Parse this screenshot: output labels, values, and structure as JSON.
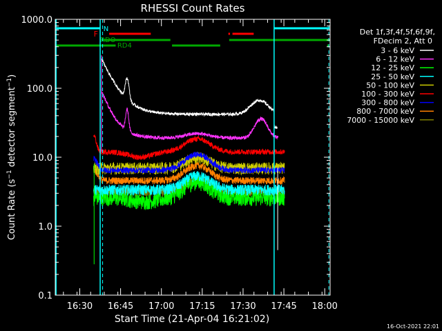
{
  "chart_data": {
    "type": "line",
    "title": "RHESSI Count Rates",
    "xlabel": "Start Time (21-Apr-04 16:21:02)",
    "ylabel_main": "Count Rate (s",
    "ylabel_sup": "−1",
    "ylabel_tail": " detector segment",
    "ylabel_sup2": "−1",
    "ylabel_close": ")",
    "y_scale": "log",
    "ylim": [
      0.1,
      1000
    ],
    "y_ticks": [
      {
        "value": 0.1,
        "label": "0.1"
      },
      {
        "value": 1,
        "label": "1.0"
      },
      {
        "value": 10,
        "label": "10.0"
      },
      {
        "value": 100,
        "label": "100.0"
      },
      {
        "value": 1000,
        "label": "1000.0"
      }
    ],
    "x_range_min": [
      16.35,
      18.033
    ],
    "x_ticks": [
      {
        "value": 16.5,
        "label": "16:30"
      },
      {
        "value": 16.75,
        "label": "16:45"
      },
      {
        "value": 17.0,
        "label": "17:00"
      },
      {
        "value": 17.25,
        "label": "17:15"
      },
      {
        "value": 17.5,
        "label": "17:30"
      },
      {
        "value": 17.75,
        "label": "17:45"
      },
      {
        "value": 18.0,
        "label": "18:00"
      }
    ],
    "legend_header": [
      "Det 1f,3f,4f,5f,6f,9f,",
      "FDecim 2, Att 0"
    ],
    "series": [
      {
        "name": "3 - 6 keV",
        "color": "#ffffff"
      },
      {
        "name": "6 - 12 keV",
        "color": "#ff33ff"
      },
      {
        "name": "12 - 25 keV",
        "color": "#00ff00"
      },
      {
        "name": "25 - 50 keV",
        "color": "#00ffff"
      },
      {
        "name": "50 - 100 keV",
        "color": "#cccc00"
      },
      {
        "name": "100 - 300 keV",
        "color": "#ff0000"
      },
      {
        "name": "300 - 800 keV",
        "color": "#0000ff"
      },
      {
        "name": "800 - 7000 keV",
        "color": "#ff8000"
      },
      {
        "name": "7000 - 15000 keV",
        "color": "#808000"
      }
    ],
    "flags": {
      "N": {
        "label": "N",
        "color": "#00ffff"
      },
      "F": {
        "label": "F",
        "color": "#ff0000"
      },
      "RDO": {
        "label": "RDO",
        "color": "#00aa00"
      },
      "RD4": {
        "label": "RD4",
        "color": "#00aa00"
      }
    },
    "timestamp": "16-Oct-2021 22:01"
  }
}
